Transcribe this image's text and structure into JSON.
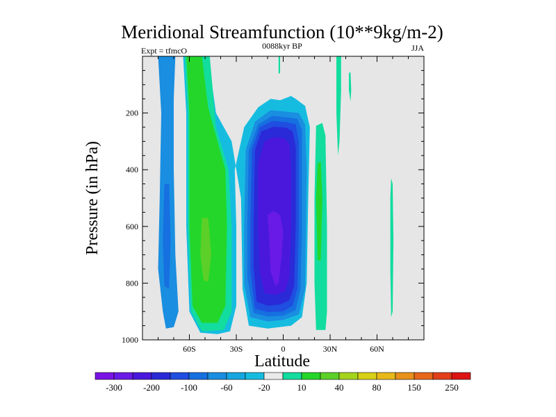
{
  "chart_data": {
    "type": "contour",
    "title": "Meridional Streamfunction (10**9kg/m-2)",
    "subtitle": "0088kyr BP",
    "left_label": "Expt = tfmcO",
    "right_label": "JJA",
    "xlabel": "Latitude",
    "ylabel": "Pressure (in hPa)",
    "xlim": [
      -90,
      90
    ],
    "ylim": [
      1000,
      0
    ],
    "x_ticks": [
      {
        "value": -60,
        "label": "60S"
      },
      {
        "value": -30,
        "label": "30S"
      },
      {
        "value": 0,
        "label": "0"
      },
      {
        "value": 30,
        "label": "30N"
      },
      {
        "value": 60,
        "label": "60N"
      }
    ],
    "y_ticks": [
      {
        "value": 200,
        "label": "200"
      },
      {
        "value": 400,
        "label": "400"
      },
      {
        "value": 600,
        "label": "600"
      },
      {
        "value": 800,
        "label": "800"
      },
      {
        "value": 1000,
        "label": "1000"
      }
    ],
    "colorbar": {
      "colors": [
        "#7a12e6",
        "#6a1ae6",
        "#4a18dd",
        "#2a2ad8",
        "#1f4ee0",
        "#1670e0",
        "#1a8ee0",
        "#16a6e0",
        "#16bce0",
        "#eaeaea",
        "#12dc9e",
        "#24d62a",
        "#5cd028",
        "#a4d41c",
        "#d8d018",
        "#e8b818",
        "#e8901a",
        "#e6661a",
        "#e23e1a",
        "#dc1414"
      ],
      "labels": [
        {
          "after_box": 1,
          "text": "-300"
        },
        {
          "after_box": 3,
          "text": "-200"
        },
        {
          "after_box": 5,
          "text": "-100"
        },
        {
          "after_box": 7,
          "text": "-60"
        },
        {
          "after_box": 9,
          "text": "-20"
        },
        {
          "after_box": 11,
          "text": "10"
        },
        {
          "after_box": 13,
          "text": "40"
        },
        {
          "after_box": 15,
          "text": "80"
        },
        {
          "after_box": 17,
          "text": "150"
        },
        {
          "after_box": 19,
          "text": "250"
        }
      ]
    },
    "regions": [
      {
        "name": "sh-polar-cell",
        "color": "#1a8ee0",
        "points": [
          [
            -80,
            0
          ],
          [
            -78,
            200
          ],
          [
            -79,
            500
          ],
          [
            -80,
            750
          ],
          [
            -77,
            900
          ],
          [
            -75,
            960
          ],
          [
            -70,
            955
          ],
          [
            -67,
            900
          ],
          [
            -69,
            700
          ],
          [
            -70,
            400
          ],
          [
            -70,
            150
          ],
          [
            -69,
            0
          ]
        ]
      },
      {
        "name": "sh-polar-core",
        "color": "#1670e0",
        "points": [
          [
            -76,
            450
          ],
          [
            -77,
            650
          ],
          [
            -76,
            810
          ],
          [
            -73,
            820
          ],
          [
            -72,
            650
          ],
          [
            -73,
            450
          ]
        ]
      },
      {
        "name": "sh-ferrel-cyan",
        "color": "#16bce0",
        "points": [
          [
            -64,
            0
          ],
          [
            -62,
            200
          ],
          [
            -62,
            600
          ],
          [
            -60,
            900
          ],
          [
            -53,
            975
          ],
          [
            -42,
            980
          ],
          [
            -34,
            970
          ],
          [
            -30,
            880
          ],
          [
            -30,
            600
          ],
          [
            -31,
            400
          ],
          [
            -25,
            250
          ],
          [
            -16,
            180
          ],
          [
            -8,
            150
          ],
          [
            -2,
            155
          ],
          [
            5,
            140
          ],
          [
            8,
            150
          ],
          [
            14,
            175
          ],
          [
            17,
            250
          ],
          [
            16,
            500
          ],
          [
            15,
            800
          ],
          [
            12,
            920
          ],
          [
            5,
            950
          ],
          [
            -10,
            960
          ],
          [
            -22,
            950
          ],
          [
            -26,
            820
          ],
          [
            -27,
            500
          ],
          [
            -33,
            300
          ],
          [
            -43,
            200
          ],
          [
            -48,
            0
          ]
        ]
      },
      {
        "name": "sh-ferrel-teal",
        "color": "#12dc9e",
        "points": [
          [
            -63,
            0
          ],
          [
            -61,
            200
          ],
          [
            -61,
            600
          ],
          [
            -59,
            900
          ],
          [
            -52,
            970
          ],
          [
            -38,
            965
          ],
          [
            -33,
            900
          ],
          [
            -33,
            600
          ],
          [
            -35,
            400
          ],
          [
            -43,
            250
          ],
          [
            -47,
            0
          ]
        ]
      },
      {
        "name": "sh-ferrel-green",
        "color": "#24d62a",
        "points": [
          [
            -62,
            0
          ],
          [
            -60,
            200
          ],
          [
            -60,
            600
          ],
          [
            -58,
            880
          ],
          [
            -52,
            940
          ],
          [
            -42,
            940
          ],
          [
            -37,
            880
          ],
          [
            -36,
            600
          ],
          [
            -37,
            400
          ],
          [
            -44,
            260
          ],
          [
            -48,
            180
          ],
          [
            -52,
            0
          ]
        ]
      },
      {
        "name": "sh-ferrel-yellowgreen",
        "color": "#5cd028",
        "points": [
          [
            -52,
            570
          ],
          [
            -53,
            700
          ],
          [
            -51,
            790
          ],
          [
            -48,
            795
          ],
          [
            -46,
            700
          ],
          [
            -48,
            570
          ]
        ]
      },
      {
        "name": "hadley-l1",
        "color": "#1a8ee0",
        "points": [
          [
            -25,
            600
          ],
          [
            -24,
            330
          ],
          [
            -18,
            230
          ],
          [
            -8,
            190
          ],
          [
            2,
            195
          ],
          [
            10,
            200
          ],
          [
            14,
            240
          ],
          [
            15,
            400
          ],
          [
            14,
            820
          ],
          [
            10,
            910
          ],
          [
            0,
            930
          ],
          [
            -10,
            935
          ],
          [
            -21,
            920
          ],
          [
            -25,
            800
          ]
        ]
      },
      {
        "name": "hadley-l2",
        "color": "#1670e0",
        "points": [
          [
            -23,
            600
          ],
          [
            -22,
            330
          ],
          [
            -16,
            240
          ],
          [
            -7,
            210
          ],
          [
            2,
            215
          ],
          [
            9,
            220
          ],
          [
            12,
            260
          ],
          [
            12,
            600
          ],
          [
            11,
            820
          ],
          [
            8,
            895
          ],
          [
            0,
            915
          ],
          [
            -10,
            918
          ],
          [
            -19,
            905
          ],
          [
            -23,
            780
          ]
        ]
      },
      {
        "name": "hadley-l3",
        "color": "#1f4ee0",
        "points": [
          [
            -21,
            600
          ],
          [
            -20,
            330
          ],
          [
            -15,
            250
          ],
          [
            -7,
            228
          ],
          [
            2,
            232
          ],
          [
            8,
            240
          ],
          [
            10,
            300
          ],
          [
            10,
            600
          ],
          [
            9,
            820
          ],
          [
            6,
            880
          ],
          [
            0,
            900
          ],
          [
            -10,
            902
          ],
          [
            -18,
            890
          ],
          [
            -21,
            760
          ]
        ]
      },
      {
        "name": "hadley-l4",
        "color": "#2a2ad8",
        "points": [
          [
            -19,
            600
          ],
          [
            -18,
            330
          ],
          [
            -14,
            265
          ],
          [
            -6,
            248
          ],
          [
            2,
            252
          ],
          [
            6,
            265
          ],
          [
            8,
            320
          ],
          [
            8,
            600
          ],
          [
            7,
            810
          ],
          [
            4,
            860
          ],
          [
            -2,
            875
          ],
          [
            -10,
            880
          ],
          [
            -17,
            865
          ],
          [
            -19,
            740
          ]
        ]
      },
      {
        "name": "hadley-l5",
        "color": "#4a18dd",
        "points": [
          [
            -16,
            600
          ],
          [
            -16,
            380
          ],
          [
            -12,
            300
          ],
          [
            -6,
            285
          ],
          [
            1,
            290
          ],
          [
            4,
            310
          ],
          [
            5,
            400
          ],
          [
            5,
            600
          ],
          [
            4,
            780
          ],
          [
            1,
            830
          ],
          [
            -5,
            842
          ],
          [
            -12,
            835
          ],
          [
            -15,
            760
          ]
        ]
      },
      {
        "name": "hadley-core",
        "color": "#6a1ae6",
        "points": [
          [
            -10,
            560
          ],
          [
            -9,
            630
          ],
          [
            -8,
            760
          ],
          [
            -5,
            810
          ],
          [
            -3,
            800
          ],
          [
            -1,
            700
          ],
          [
            0,
            620
          ],
          [
            -2,
            560
          ],
          [
            -6,
            545
          ]
        ]
      },
      {
        "name": "nh-green-band",
        "color": "#12dc9e",
        "points": [
          [
            21,
            245
          ],
          [
            25,
            235
          ],
          [
            27,
            280
          ],
          [
            28,
            600
          ],
          [
            28,
            900
          ],
          [
            27,
            965
          ],
          [
            21,
            965
          ],
          [
            20,
            800
          ],
          [
            20,
            500
          ]
        ]
      },
      {
        "name": "nh-green-core",
        "color": "#24d62a",
        "points": [
          [
            22,
            380
          ],
          [
            24,
            370
          ],
          [
            25,
            500
          ],
          [
            24,
            720
          ],
          [
            22,
            720
          ],
          [
            21,
            500
          ]
        ]
      },
      {
        "name": "nh-top-strip",
        "color": "#12dc9e",
        "points": [
          [
            34,
            0
          ],
          [
            37,
            0
          ],
          [
            37,
            120
          ],
          [
            36,
            300
          ],
          [
            35,
            350
          ],
          [
            34,
            200
          ]
        ]
      },
      {
        "name": "nh-small-blob",
        "color": "#12dc9e",
        "points": [
          [
            42,
            60
          ],
          [
            43,
            55
          ],
          [
            43.5,
            120
          ],
          [
            43,
            160
          ],
          [
            42,
            120
          ]
        ]
      },
      {
        "name": "tropics-top-strip",
        "color": "#12dc9e",
        "points": [
          [
            -3,
            0
          ],
          [
            -2,
            0
          ],
          [
            -2,
            60
          ],
          [
            -3,
            60
          ]
        ]
      },
      {
        "name": "nh-60n-strip",
        "color": "#12dc9e",
        "points": [
          [
            69,
            430
          ],
          [
            70,
            450
          ],
          [
            70.5,
            650
          ],
          [
            70,
            900
          ],
          [
            69,
            920
          ],
          [
            68.5,
            750
          ],
          [
            68.5,
            500
          ]
        ]
      }
    ]
  }
}
